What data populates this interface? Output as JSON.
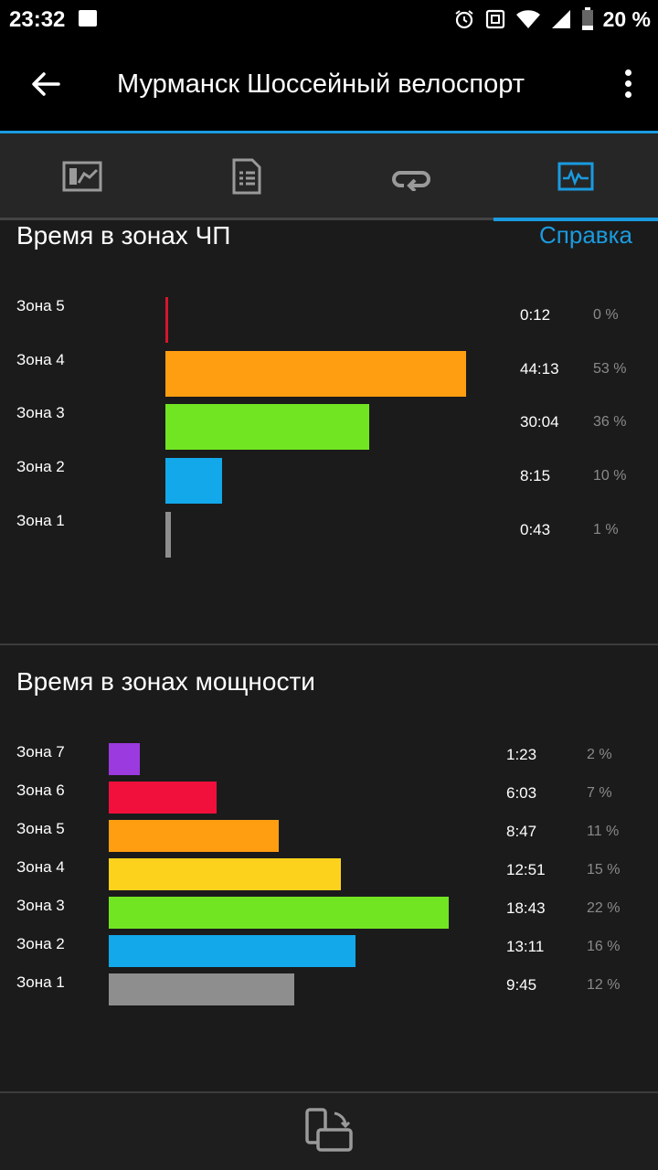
{
  "status_bar": {
    "time": "23:32",
    "battery_percent": "20 %",
    "icons": [
      "image-icon",
      "alarm-icon",
      "nfc-icon",
      "wifi-icon",
      "signal-icon",
      "battery-icon"
    ]
  },
  "app_bar": {
    "title": "Мурманск Шоссейный велоспорт",
    "back_icon": "arrow-left-icon",
    "menu_icon": "more-vert-icon"
  },
  "tabs": [
    {
      "icon": "chart-card-icon",
      "active": false
    },
    {
      "icon": "document-list-icon",
      "active": false
    },
    {
      "icon": "loop-icon",
      "active": false
    },
    {
      "icon": "activity-monitor-icon",
      "active": true
    }
  ],
  "hr_zones": {
    "title": "Время в зонах ЧП",
    "help_label": "Справка",
    "zones": [
      {
        "label": "Зона 5",
        "time": "0:12",
        "percent": "0 %",
        "fraction": 0.005,
        "color": "#d4162e"
      },
      {
        "label": "Зона 4",
        "time": "44:13",
        "percent": "53 %",
        "fraction": 0.53,
        "color": "#ff9e10"
      },
      {
        "label": "Зона 3",
        "time": "30:04",
        "percent": "36 %",
        "fraction": 0.36,
        "color": "#72e522"
      },
      {
        "label": "Зона 2",
        "time": "8:15",
        "percent": "10 %",
        "fraction": 0.1,
        "color": "#12a8ea"
      },
      {
        "label": "Зона 1",
        "time": "0:43",
        "percent": "1 %",
        "fraction": 0.01,
        "color": "#8e8e8e"
      }
    ]
  },
  "power_zones": {
    "title": "Время в зонах мощности",
    "zones": [
      {
        "label": "Зона 7",
        "time": "1:23",
        "percent": "2 %",
        "fraction": 0.02,
        "color": "#9b3adf"
      },
      {
        "label": "Зона 6",
        "time": "6:03",
        "percent": "7 %",
        "fraction": 0.07,
        "color": "#f1103c"
      },
      {
        "label": "Зона 5",
        "time": "8:47",
        "percent": "11 %",
        "fraction": 0.11,
        "color": "#ff9e10"
      },
      {
        "label": "Зона 4",
        "time": "12:51",
        "percent": "15 %",
        "fraction": 0.15,
        "color": "#fdd21c"
      },
      {
        "label": "Зона 3",
        "time": "18:43",
        "percent": "22 %",
        "fraction": 0.22,
        "color": "#72e522"
      },
      {
        "label": "Зона 2",
        "time": "13:11",
        "percent": "16 %",
        "fraction": 0.16,
        "color": "#12a8ea"
      },
      {
        "label": "Зона 1",
        "time": "9:45",
        "percent": "12 %",
        "fraction": 0.12,
        "color": "#8e8e8e"
      }
    ]
  },
  "bottom_bar": {
    "icon": "screen-rotate-icon"
  },
  "accent_color": "#1a9be0"
}
